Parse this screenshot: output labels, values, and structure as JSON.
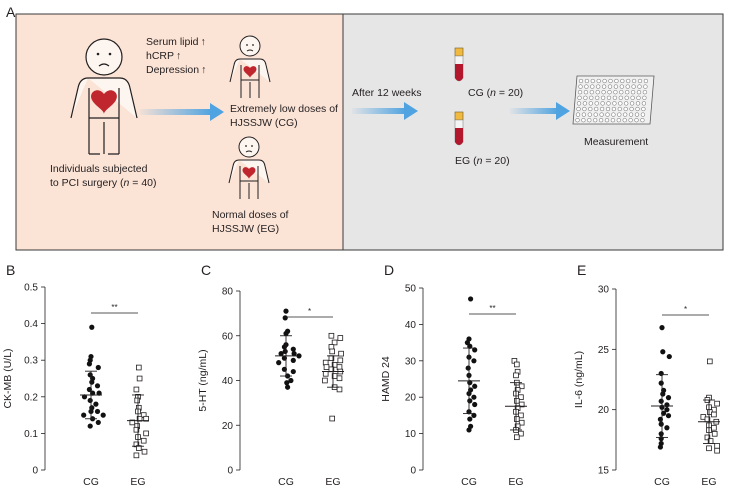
{
  "panel_a": {
    "label": "A",
    "left_box_color": "#fbe3d6",
    "right_box_color": "#e7e6e6",
    "arrow_color": "#4fa3e0",
    "individuals_line1": "Individuals subjected",
    "individuals_line2_prefix": "to PCI surgery (",
    "individuals_n": "n",
    "individuals_line2_suffix": " = 40)",
    "risk_serum": "Serum lipid",
    "risk_hcrp": "hCRP",
    "risk_depression": "Depression",
    "up_arrow": "↑",
    "cg_line1": "Extremely low doses of",
    "cg_line2": "HJSSJW (CG)",
    "eg_line1": "Normal doses of",
    "eg_line2": "HJSSJW (EG)",
    "after": "After 12 weeks",
    "tube_cg_prefix": "CG (",
    "tube_eg_prefix": "EG (",
    "n_italic": "n",
    "tube_suffix": " = 20)",
    "measurement": "Measurement"
  },
  "chart_data": [
    {
      "panel": "B",
      "type": "scatter",
      "ylabel": "CK-MB (U/L)",
      "ylim": [
        0,
        0.5
      ],
      "yticks": [
        "0",
        "0.1",
        "0.2",
        "0.3",
        "0.4",
        "0.5"
      ],
      "categories": [
        "CG",
        "EG"
      ],
      "significance": "**",
      "series": [
        {
          "name": "CG",
          "mean": 0.205,
          "sd": 0.065,
          "values": [
            0.39,
            0.31,
            0.3,
            0.29,
            0.28,
            0.26,
            0.25,
            0.24,
            0.23,
            0.22,
            0.21,
            0.21,
            0.2,
            0.19,
            0.18,
            0.17,
            0.16,
            0.16,
            0.15,
            0.15,
            0.14,
            0.13,
            0.12
          ]
        },
        {
          "name": "EG",
          "mean": 0.135,
          "sd": 0.07,
          "values": [
            0.28,
            0.25,
            0.22,
            0.2,
            0.19,
            0.17,
            0.16,
            0.15,
            0.14,
            0.14,
            0.13,
            0.12,
            0.11,
            0.1,
            0.09,
            0.08,
            0.07,
            0.06,
            0.05,
            0.04
          ]
        }
      ]
    },
    {
      "panel": "C",
      "type": "scatter",
      "ylabel": "5-HT (ng/mL)",
      "ylim": [
        0,
        80
      ],
      "yticks": [
        "0",
        "20",
        "40",
        "60",
        "80"
      ],
      "categories": [
        "CG",
        "EG"
      ],
      "significance": "*",
      "series": [
        {
          "name": "CG",
          "mean": 51,
          "sd": 9,
          "values": [
            71,
            68,
            62,
            61,
            56,
            55,
            54,
            53,
            52,
            52,
            51,
            50,
            49,
            48,
            45,
            44,
            42,
            40,
            39,
            37
          ]
        },
        {
          "name": "EG",
          "mean": 44,
          "sd": 7,
          "values": [
            60,
            59,
            57,
            55,
            53,
            52,
            50,
            49,
            48,
            47,
            46,
            46,
            45,
            44,
            43,
            42,
            41,
            40,
            37,
            36,
            23
          ]
        }
      ]
    },
    {
      "panel": "D",
      "type": "scatter",
      "ylabel": "HAMD 24",
      "ylim": [
        0,
        50
      ],
      "yticks": [
        "0",
        "10",
        "20",
        "30",
        "40",
        "50"
      ],
      "categories": [
        "CG",
        "EG"
      ],
      "significance": "**",
      "series": [
        {
          "name": "CG",
          "mean": 24.5,
          "sd": 9,
          "values": [
            47,
            36,
            35,
            34,
            33,
            31,
            30,
            28,
            26,
            24,
            23,
            22,
            21,
            20,
            19,
            18,
            16,
            15,
            14,
            12,
            11
          ]
        },
        {
          "name": "EG",
          "mean": 17.5,
          "sd": 6.5,
          "values": [
            30,
            29,
            27,
            26,
            24,
            23,
            22,
            21,
            20,
            19,
            18,
            17,
            16,
            15,
            14,
            13,
            12,
            11,
            10,
            9
          ]
        }
      ]
    },
    {
      "panel": "E",
      "type": "scatter",
      "ylabel": "IL-6 (ng/mL)",
      "ylim": [
        15,
        30
      ],
      "yticks": [
        "15",
        "20",
        "25",
        "30"
      ],
      "categories": [
        "CG",
        "EG"
      ],
      "significance": "*",
      "series": [
        {
          "name": "CG",
          "mean": 20.3,
          "sd": 2.6,
          "values": [
            26.8,
            24.8,
            24.4,
            23.0,
            22.2,
            21.6,
            21.3,
            21.0,
            20.7,
            20.4,
            20.2,
            20.0,
            19.7,
            19.5,
            19.2,
            18.8,
            18.5,
            18.0,
            17.6,
            17.2,
            16.9
          ]
        },
        {
          "name": "EG",
          "mean": 19.0,
          "sd": 1.8,
          "values": [
            24.0,
            21.0,
            20.8,
            20.5,
            20.2,
            20.0,
            19.8,
            19.6,
            19.4,
            19.2,
            19.0,
            18.7,
            18.5,
            18.3,
            18.0,
            17.7,
            17.4,
            17.0,
            16.8,
            16.6
          ]
        }
      ]
    }
  ]
}
